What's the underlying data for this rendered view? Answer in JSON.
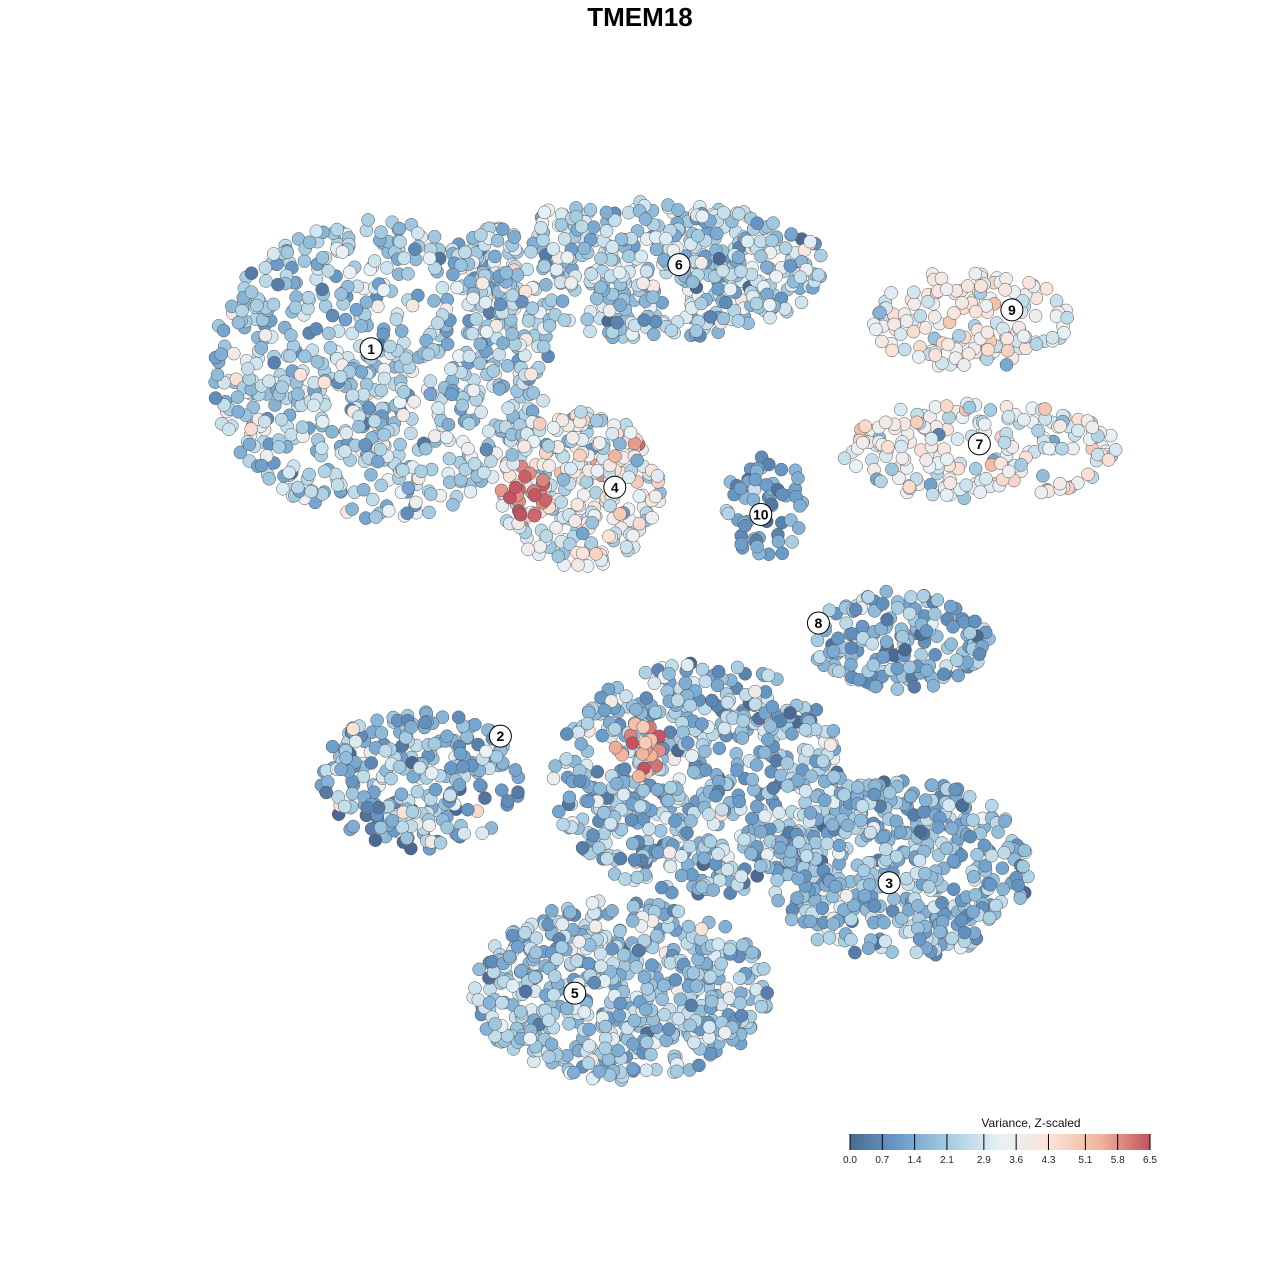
{
  "chart_data": {
    "type": "scatter",
    "title": "TMEM18",
    "xlabel": "",
    "ylabel": "",
    "xlim": [
      0,
      100
    ],
    "ylim": [
      0,
      100
    ],
    "grid": false,
    "note": "Embedding coordinates; clusters summarized by center, spread, point count and mean z-scaled variance",
    "clusters": [
      {
        "label": "1",
        "x": 19.4,
        "y": 79.6,
        "label_x": 18.4,
        "label_y": 81.9,
        "rx": 18.3,
        "ry": 16.6,
        "n": 700,
        "mean": 2.2,
        "sd": 0.8
      },
      {
        "label": "6",
        "x": 47.3,
        "y": 90.6,
        "label_x": 51.5,
        "label_y": 91.2,
        "rx": 20.4,
        "ry": 7.7,
        "n": 500,
        "mean": 2.3,
        "sd": 0.9
      },
      {
        "label": "9",
        "x": 82.8,
        "y": 85.1,
        "label_x": 87.3,
        "label_y": 86.2,
        "rx": 10.8,
        "ry": 5.5,
        "n": 150,
        "mean": 3.6,
        "sd": 0.7
      },
      {
        "label": "7",
        "x": 83.9,
        "y": 70.7,
        "label_x": 83.8,
        "label_y": 71.4,
        "rx": 15.0,
        "ry": 5.5,
        "n": 200,
        "mean": 3.3,
        "sd": 0.8
      },
      {
        "label": "4",
        "x": 40.9,
        "y": 66.3,
        "label_x": 44.6,
        "label_y": 66.6,
        "rx": 8.6,
        "ry": 8.8,
        "n": 250,
        "mean": 3.3,
        "sd": 1.0
      },
      {
        "label": "10",
        "x": 60.8,
        "y": 64.6,
        "label_x": 60.3,
        "label_y": 63.6,
        "rx": 4.3,
        "ry": 6.0,
        "n": 60,
        "mean": 1.2,
        "sd": 0.6
      },
      {
        "label": "8",
        "x": 75.3,
        "y": 49.7,
        "label_x": 66.5,
        "label_y": 51.6,
        "rx": 9.7,
        "ry": 5.5,
        "n": 180,
        "mean": 1.6,
        "sd": 0.8
      },
      {
        "label": "2",
        "x": 23.7,
        "y": 34.3,
        "label_x": 32.3,
        "label_y": 39.1,
        "rx": 10.8,
        "ry": 7.7,
        "n": 250,
        "mean": 1.8,
        "sd": 0.9
      },
      {
        "label": "",
        "x": 53.8,
        "y": 34.3,
        "label_x": null,
        "label_y": null,
        "rx": 16.0,
        "ry": 13.0,
        "n": 600,
        "mean": 1.8,
        "sd": 0.8
      },
      {
        "label": "3",
        "x": 75.3,
        "y": 24.3,
        "label_x": 74.1,
        "label_y": 22.9,
        "rx": 14.0,
        "ry": 10.0,
        "n": 450,
        "mean": 1.8,
        "sd": 0.7
      },
      {
        "label": "5",
        "x": 45.2,
        "y": 11.0,
        "label_x": 40.3,
        "label_y": 10.7,
        "rx": 16.0,
        "ry": 10.0,
        "n": 550,
        "mean": 2.0,
        "sd": 0.7
      }
    ],
    "hotspots": [
      {
        "x": 35.5,
        "y": 65.7,
        "r": 2.5,
        "n": 22,
        "value": 6.2
      },
      {
        "x": 47.3,
        "y": 37.6,
        "r": 3.0,
        "n": 20,
        "value": 5.5
      }
    ],
    "legend": {
      "title": "Variance, Z-scaled",
      "placement": "bottom-right",
      "ticks": [
        "0.0",
        "0.7",
        "1.4",
        "2.1",
        "2.9",
        "3.6",
        "4.3",
        "5.1",
        "5.8",
        "6.5"
      ],
      "range": [
        0,
        6.5
      ],
      "colors": [
        "#4a6a93",
        "#6a9ccb",
        "#a6cde2",
        "#e8f1f6",
        "#fbe3d8",
        "#f2b59b",
        "#c4525f"
      ]
    }
  }
}
